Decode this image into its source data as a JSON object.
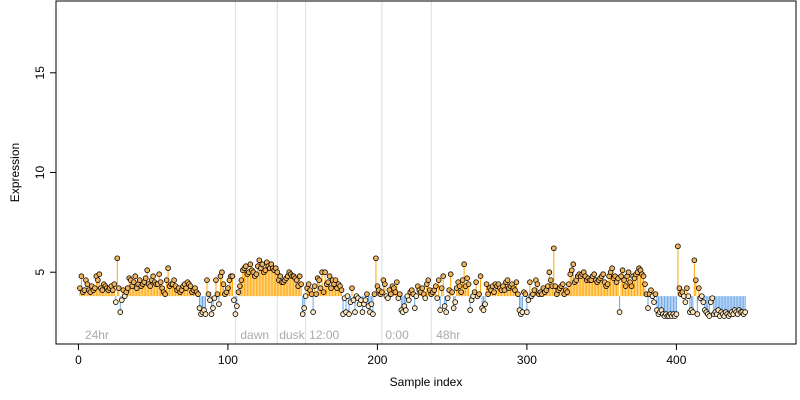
{
  "chart_data": {
    "type": "scatter",
    "title": "",
    "xlabel": "Sample index",
    "ylabel": "Expression",
    "xlim": [
      -15,
      480
    ],
    "ylim": [
      1.4,
      18.6
    ],
    "x_ticks": [
      0,
      100,
      200,
      300,
      400
    ],
    "y_ticks": [
      5,
      10,
      15
    ],
    "baseline": 3.8,
    "colors": {
      "above": "#ffa500",
      "below": "#6ca6e8",
      "separator": "#dddddd",
      "point_stroke": "#000000",
      "point_fill_light": "#ffe8c0",
      "point_fill_mid": "#f2b45c",
      "region_label": "#aaaaaa",
      "frame": "#000000"
    },
    "separators": [
      105,
      133,
      152,
      203,
      236
    ],
    "region_labels": [
      {
        "text": "24hr",
        "x": 3
      },
      {
        "text": "dawn",
        "x": 107
      },
      {
        "text": "dusk",
        "x": 133
      },
      {
        "text": "12:00",
        "x": 153
      },
      {
        "text": "0:00",
        "x": 204
      },
      {
        "text": "48hr",
        "x": 238
      }
    ],
    "series": [
      {
        "values": [
          4.2,
          4.8,
          4.0,
          4.1,
          4.6,
          4.4,
          4.1,
          4.0,
          4.3,
          4.1,
          4.2,
          4.8,
          4.6,
          4.9,
          4.2,
          4.1,
          4.4,
          4.3,
          4.2,
          4.1,
          4.2,
          4.3,
          4.1,
          4.4,
          3.5,
          5.7,
          4.2,
          3.0,
          3.6,
          4.1,
          3.8,
          4.0,
          4.2,
          4.7,
          4.6,
          4.3,
          4.5,
          4.8,
          4.2,
          4.4,
          4.6,
          4.3,
          4.4,
          4.5,
          4.7,
          5.1,
          4.4,
          4.3,
          4.6,
          4.8,
          4.5,
          4.4,
          4.4,
          4.9,
          4.5,
          4.2,
          4.0,
          3.9,
          4.6,
          5.2,
          4.3,
          4.4,
          4.4,
          4.6,
          4.3,
          4.1,
          4.2,
          4.0,
          4.1,
          4.3,
          4.4,
          4.2,
          4.5,
          4.4,
          4.3,
          4.0,
          4.1,
          4.2,
          4.0,
          3.9,
          3.2,
          2.9,
          3.0,
          3.1,
          2.9,
          4.6,
          3.9,
          3.6,
          2.9,
          3.2,
          3.7,
          4.6,
          3.9,
          3.4,
          4.8,
          5.0,
          4.4,
          3.9,
          4.0,
          4.2,
          4.6,
          4.8,
          4.8,
          3.6,
          2.9,
          3.3,
          4.0,
          4.3,
          4.6,
          5.1,
          5.2,
          5.3,
          4.9,
          5.0,
          5.4,
          5.1,
          5.0,
          4.8,
          4.9,
          5.3,
          5.6,
          5.2,
          5.4,
          5.0,
          5.1,
          5.5,
          5.3,
          5.2,
          5.4,
          5.2,
          5.1,
          5.2,
          5.0,
          4.6,
          4.8,
          4.5,
          4.5,
          4.6,
          4.7,
          4.8,
          5.0,
          4.9,
          4.8,
          4.8,
          4.7,
          4.6,
          4.3,
          4.8,
          4.4,
          2.9,
          3.2,
          3.8,
          4.2,
          4.4,
          4.1,
          3.9,
          3.0,
          4.3,
          3.9,
          4.7,
          4.6,
          4.2,
          5.0,
          4.0,
          5.0,
          4.4,
          4.5,
          4.8,
          4.2,
          4.6,
          4.4,
          4.6,
          4.2,
          4.4,
          4.3,
          4.1,
          2.9,
          3.7,
          3.0,
          3.8,
          2.9,
          3.5,
          4.2,
          3.6,
          3.0,
          3.8,
          3.7,
          3.4,
          3.6,
          3.0,
          3.4,
          3.6,
          3.9,
          3.3,
          3.0,
          3.4,
          2.9,
          3.9,
          5.7,
          4.3,
          4.1,
          3.9,
          4.0,
          4.6,
          4.4,
          3.8,
          3.7,
          4.1,
          3.9,
          4.3,
          4.2,
          4.0,
          4.5,
          3.7,
          3.9,
          3.1,
          3.0,
          3.3,
          3.1,
          3.8,
          3.6,
          4.0,
          4.1,
          3.9,
          3.2,
          3.8,
          4.3,
          4.1,
          4.0,
          4.2,
          3.9,
          3.7,
          4.4,
          4.6,
          4.1,
          3.9,
          4.0,
          4.1,
          4.3,
          3.7,
          4.6,
          3.1,
          4.2,
          4.8,
          3.3,
          3.0,
          3.7,
          4.1,
          4.9,
          4.0,
          3.2,
          3.5,
          4.2,
          4.5,
          4.3,
          4.0,
          4.6,
          5.4,
          4.3,
          4.7,
          4.4,
          3.1,
          3.6,
          3.8,
          4.0,
          4.5,
          3.8,
          3.9,
          4.8,
          3.2,
          3.1,
          3.4,
          4.4,
          3.9,
          4.2,
          4.1,
          4.3,
          4.0,
          4.4,
          4.3,
          4.4,
          4.2,
          4.1,
          4.3,
          4.1,
          4.5,
          4.6,
          4.2,
          4.3,
          4.4,
          4.2,
          4.1,
          4.5,
          3.9,
          3.1,
          2.9,
          3.0,
          4.0,
          3.9,
          3.0,
          3.6,
          4.5,
          3.8,
          3.9,
          4.1,
          4.6,
          4.4,
          3.9,
          4.0,
          3.9,
          4.2,
          4.0,
          4.1,
          4.3,
          5.0,
          4.6,
          4.3,
          6.2,
          4.3,
          3.9,
          4.1,
          4.2,
          4.3,
          4.4,
          3.9,
          4.1,
          4.0,
          4.4,
          4.9,
          5.1,
          5.4,
          4.5,
          4.6,
          4.8,
          4.9,
          4.8,
          4.9,
          5.0,
          4.8,
          4.6,
          4.7,
          4.6,
          4.6,
          4.8,
          4.9,
          4.6,
          4.5,
          4.6,
          4.7,
          4.8,
          4.9,
          4.5,
          4.3,
          4.4,
          4.8,
          5.0,
          5.2,
          4.7,
          4.8,
          4.5,
          4.7,
          3.0,
          4.8,
          5.1,
          4.6,
          4.3,
          4.8,
          5.0,
          4.5,
          4.3,
          4.8,
          4.7,
          4.9,
          5.0,
          5.2,
          5.1,
          4.9,
          4.8,
          4.4,
          3.9,
          3.2,
          3.9,
          4.1,
          3.8,
          3.5,
          3.9,
          3.1,
          2.9,
          3.0,
          3.1,
          2.9,
          2.8,
          2.9,
          2.8,
          2.8,
          2.9,
          2.8,
          2.9,
          2.8,
          2.9,
          6.3,
          4.2,
          3.9,
          4.0,
          3.8,
          3.5,
          4.2,
          3.8,
          3.0,
          3.1,
          3.0,
          5.6,
          4.6,
          2.9,
          4.2,
          3.7,
          3.8,
          3.5,
          3.1,
          3.0,
          2.9,
          2.8,
          3.5,
          3.7,
          2.9,
          3.0,
          2.9,
          3.1,
          2.8,
          3.0,
          2.9,
          2.8,
          3.0,
          2.9,
          2.8,
          2.9,
          3.0,
          2.9,
          3.1,
          3.0,
          2.9,
          3.1,
          3.0,
          3.0,
          2.9,
          3.0
        ]
      }
    ]
  }
}
